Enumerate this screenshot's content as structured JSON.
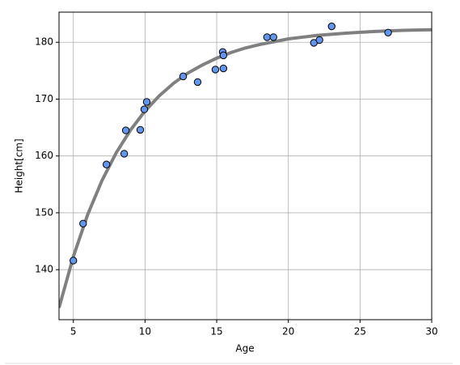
{
  "chart_data": {
    "type": "scatter",
    "x_label": "Age",
    "y_label": "Height[cm]",
    "xlim": [
      4,
      30
    ],
    "xticks": [
      5,
      10,
      15,
      20,
      25,
      30
    ],
    "ylim": [
      131.2,
      185.3
    ],
    "yticks": [
      140,
      150,
      160,
      170,
      180
    ],
    "grid": true,
    "series": [
      {
        "type": "line",
        "color": "#808080",
        "x": [
          4,
          5,
          6,
          7,
          8,
          9,
          10,
          11,
          12,
          13,
          14,
          15,
          16,
          17,
          18,
          19,
          20,
          22,
          24,
          26,
          28,
          30
        ],
        "values": [
          133.3,
          142.3,
          149.7,
          155.7,
          160.6,
          164.6,
          167.9,
          170.6,
          172.8,
          174.6,
          176.0,
          177.2,
          178.2,
          179.0,
          179.6,
          180.1,
          180.6,
          181.2,
          181.6,
          181.9,
          182.1,
          182.2
        ]
      },
      {
        "type": "scatter",
        "color": "#6495ed",
        "x": [
          5.0,
          5.68,
          7.31,
          8.55,
          8.66,
          9.67,
          9.95,
          10.12,
          12.66,
          13.67,
          14.91,
          15.42,
          15.47,
          15.47,
          18.51,
          18.96,
          21.78,
          22.17,
          23.02,
          26.96
        ],
        "values": [
          141.6,
          148.1,
          158.5,
          160.4,
          164.5,
          164.6,
          168.2,
          169.5,
          174.0,
          173.0,
          175.2,
          178.3,
          177.7,
          175.4,
          180.9,
          180.9,
          179.9,
          180.4,
          182.8,
          181.7
        ]
      }
    ]
  }
}
